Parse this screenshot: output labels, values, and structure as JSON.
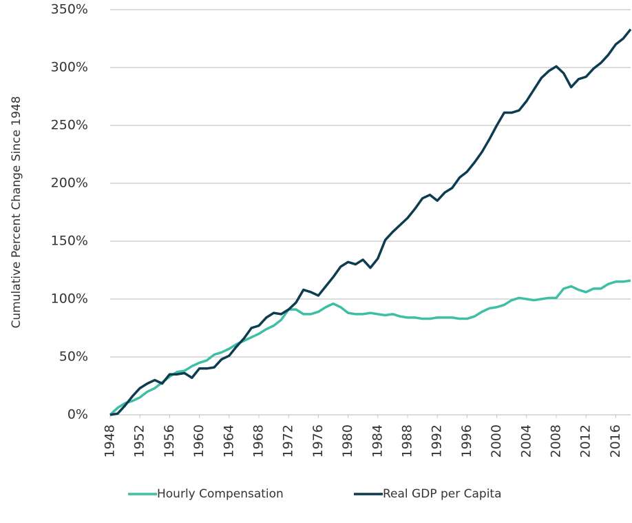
{
  "chart_data": {
    "type": "line",
    "y_label": "Cumulative Percent Change Since 1948",
    "x": [
      1948,
      1949,
      1950,
      1951,
      1952,
      1953,
      1954,
      1955,
      1956,
      1957,
      1958,
      1959,
      1960,
      1961,
      1962,
      1963,
      1964,
      1965,
      1966,
      1967,
      1968,
      1969,
      1970,
      1971,
      1972,
      1973,
      1974,
      1975,
      1976,
      1977,
      1978,
      1979,
      1980,
      1981,
      1982,
      1983,
      1984,
      1985,
      1986,
      1987,
      1988,
      1989,
      1990,
      1991,
      1992,
      1993,
      1994,
      1995,
      1996,
      1997,
      1998,
      1999,
      2000,
      2001,
      2002,
      2003,
      2004,
      2005,
      2006,
      2007,
      2008,
      2009,
      2010,
      2011,
      2012,
      2013,
      2014,
      2015,
      2016,
      2017,
      2018
    ],
    "series": [
      {
        "name": "Hourly Compensation",
        "color": "#3cbfa4",
        "values": [
          0,
          6,
          10,
          12,
          15,
          20,
          23,
          28,
          33,
          37,
          38,
          42,
          45,
          47,
          52,
          54,
          57,
          61,
          64,
          67,
          70,
          74,
          77,
          82,
          91,
          91,
          87,
          87,
          89,
          93,
          96,
          93,
          88,
          87,
          87,
          88,
          87,
          86,
          87,
          85,
          84,
          84,
          83,
          83,
          84,
          84,
          84,
          83,
          83,
          85,
          89,
          92,
          93,
          95,
          99,
          101,
          100,
          99,
          100,
          101,
          101,
          109,
          111,
          108,
          106,
          109,
          109,
          113,
          115,
          115,
          116
        ]
      },
      {
        "name": "Real GDP per Capita",
        "color": "#0d3b4f",
        "values": [
          0,
          1,
          8,
          16,
          23,
          27,
          30,
          27,
          35,
          35,
          36,
          32,
          40,
          40,
          41,
          48,
          51,
          59,
          66,
          75,
          77,
          84,
          88,
          87,
          91,
          97,
          108,
          106,
          103,
          111,
          119,
          128,
          132,
          130,
          134,
          127,
          135,
          151,
          158,
          164,
          170,
          178,
          187,
          190,
          185,
          192,
          196,
          205,
          210,
          218,
          227,
          238,
          250,
          261,
          261,
          263,
          271,
          281,
          291,
          297,
          301,
          295,
          283,
          290,
          292,
          299,
          304,
          311,
          320,
          325,
          333
        ]
      }
    ],
    "xlim": [
      1948,
      2018
    ],
    "xticks": [
      1948,
      1952,
      1956,
      1960,
      1964,
      1968,
      1972,
      1976,
      1980,
      1984,
      1988,
      1992,
      1996,
      2000,
      2004,
      2008,
      2012,
      2016
    ],
    "ylim": [
      0,
      350
    ],
    "yticks": [
      {
        "value": 0,
        "label": "0%"
      },
      {
        "value": 50,
        "label": "50%"
      },
      {
        "value": 100,
        "label": "100%"
      },
      {
        "value": 150,
        "label": "150%"
      },
      {
        "value": 200,
        "label": "200%"
      },
      {
        "value": 250,
        "label": "250%"
      },
      {
        "value": 300,
        "label": "300%"
      },
      {
        "value": 350,
        "label": "350%"
      }
    ],
    "grid": true,
    "legend": "bottom"
  }
}
